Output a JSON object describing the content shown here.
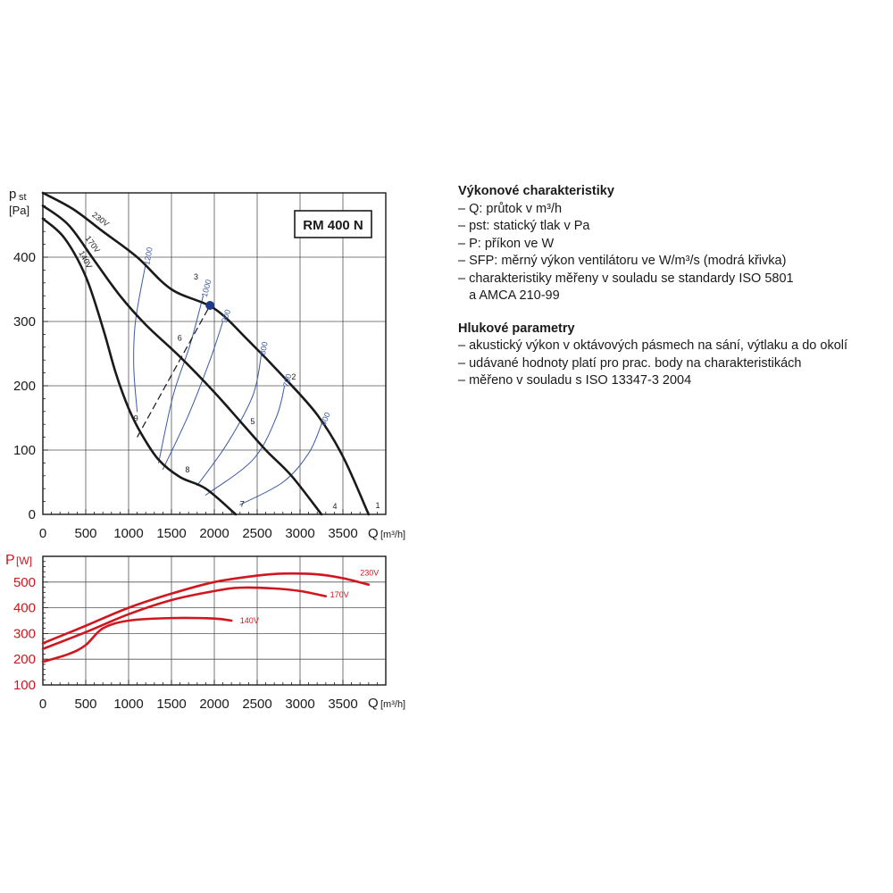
{
  "model_box": "RM 400 N",
  "colors": {
    "curve": "#1a1a1a",
    "sfp": "#3b5aa3",
    "power": "#d0161e",
    "op_point": "#1f3a8a"
  },
  "chart_data": [
    {
      "type": "line",
      "name": "pressure",
      "title": "RM 400 N",
      "ylabel_main": "p",
      "ylabel_sub": "st",
      "ylabel_unit": "[Pa]",
      "xlabel": "Q",
      "xunit": "[m³/h]",
      "xlim": [
        0,
        4000
      ],
      "ylim": [
        0,
        500
      ],
      "x_ticks": [
        0,
        500,
        1000,
        1500,
        2000,
        2500,
        3000,
        3500
      ],
      "y_ticks": [
        0,
        100,
        200,
        300,
        400
      ],
      "grid": true,
      "series": [
        {
          "name": "230V",
          "points": [
            [
              0,
              500
            ],
            [
              350,
              475
            ],
            [
              700,
              440
            ],
            [
              1100,
              400
            ],
            [
              1500,
              350
            ],
            [
              2000,
              320
            ],
            [
              2400,
              270
            ],
            [
              2800,
              215
            ],
            [
              3200,
              155
            ],
            [
              3500,
              90
            ],
            [
              3800,
              0
            ]
          ]
        },
        {
          "name": "170V",
          "points": [
            [
              0,
              480
            ],
            [
              300,
              450
            ],
            [
              600,
              395
            ],
            [
              900,
              340
            ],
            [
              1200,
              295
            ],
            [
              1600,
              245
            ],
            [
              2000,
              190
            ],
            [
              2300,
              145
            ],
            [
              2600,
              100
            ],
            [
              2900,
              60
            ],
            [
              3250,
              0
            ]
          ]
        },
        {
          "name": "140V",
          "points": [
            [
              0,
              460
            ],
            [
              250,
              430
            ],
            [
              500,
              370
            ],
            [
              700,
              290
            ],
            [
              850,
              220
            ],
            [
              1000,
              165
            ],
            [
              1150,
              125
            ],
            [
              1350,
              85
            ],
            [
              1600,
              58
            ],
            [
              1900,
              40
            ],
            [
              2250,
              0
            ]
          ]
        },
        {
          "name": "SFP 1200",
          "sfp": true,
          "points": [
            [
              1100,
              160
            ],
            [
              1060,
              230
            ],
            [
              1080,
              300
            ],
            [
              1200,
              390
            ]
          ]
        },
        {
          "name": "SFP 1000",
          "sfp": true,
          "points": [
            [
              1350,
              80
            ],
            [
              1520,
              185
            ],
            [
              1720,
              265
            ],
            [
              1870,
              340
            ]
          ]
        },
        {
          "name": "SFP 900",
          "sfp": true,
          "points": [
            [
              1400,
              70
            ],
            [
              1700,
              155
            ],
            [
              1950,
              240
            ],
            [
              2100,
              300
            ]
          ]
        },
        {
          "name": "SFP 800",
          "sfp": true,
          "points": [
            [
              1800,
              45
            ],
            [
              2150,
              110
            ],
            [
              2450,
              185
            ],
            [
              2550,
              250
            ]
          ]
        },
        {
          "name": "SFP 700",
          "sfp": true,
          "points": [
            [
              1900,
              30
            ],
            [
              2450,
              85
            ],
            [
              2720,
              150
            ],
            [
              2820,
              200
            ]
          ]
        },
        {
          "name": "SFP 600",
          "sfp": true,
          "points": [
            [
              2300,
              15
            ],
            [
              2800,
              50
            ],
            [
              3100,
              95
            ],
            [
              3250,
              140
            ]
          ]
        }
      ],
      "dashed_line": [
        [
          1100,
          120
        ],
        [
          1950,
          325
        ]
      ],
      "operating_point": [
        1950,
        325
      ],
      "point_labels": [
        {
          "text": "1",
          "x": 3880,
          "y": 10
        },
        {
          "text": "2",
          "x": 2900,
          "y": 210
        },
        {
          "text": "3",
          "x": 1760,
          "y": 365
        },
        {
          "text": "4",
          "x": 3380,
          "y": 8
        },
        {
          "text": "5",
          "x": 2420,
          "y": 140
        },
        {
          "text": "6",
          "x": 1570,
          "y": 270
        },
        {
          "text": "7",
          "x": 2300,
          "y": 12
        },
        {
          "text": "8",
          "x": 1660,
          "y": 65
        },
        {
          "text": "9",
          "x": 1060,
          "y": 145
        }
      ]
    },
    {
      "type": "line",
      "name": "power",
      "ylabel_main": "P",
      "ylabel_unit": "[W]",
      "xlabel": "Q",
      "xunit": "[m³/h]",
      "xlim": [
        0,
        4000
      ],
      "ylim": [
        100,
        600
      ],
      "x_ticks": [
        0,
        500,
        1000,
        1500,
        2000,
        2500,
        3000,
        3500
      ],
      "y_ticks": [
        100,
        200,
        300,
        400,
        500
      ],
      "grid": true,
      "series": [
        {
          "name": "230V",
          "points": [
            [
              0,
              262
            ],
            [
              500,
              330
            ],
            [
              1000,
              400
            ],
            [
              1500,
              455
            ],
            [
              2000,
              500
            ],
            [
              2500,
              525
            ],
            [
              2800,
              533
            ],
            [
              3200,
              530
            ],
            [
              3500,
              515
            ],
            [
              3800,
              490
            ]
          ]
        },
        {
          "name": "170V",
          "points": [
            [
              0,
              240
            ],
            [
              500,
              305
            ],
            [
              1000,
              375
            ],
            [
              1500,
              430
            ],
            [
              2000,
              465
            ],
            [
              2300,
              478
            ],
            [
              2700,
              475
            ],
            [
              3000,
              465
            ],
            [
              3300,
              445
            ]
          ]
        },
        {
          "name": "140V",
          "points": [
            [
              0,
              190
            ],
            [
              300,
              220
            ],
            [
              500,
              255
            ],
            [
              700,
              320
            ],
            [
              1000,
              350
            ],
            [
              1500,
              360
            ],
            [
              2000,
              358
            ],
            [
              2200,
              350
            ]
          ]
        }
      ],
      "labels": [
        {
          "text": "230V",
          "x": 3700,
          "y": 525
        },
        {
          "text": "170V",
          "x": 3350,
          "y": 440
        },
        {
          "text": "140V",
          "x": 2300,
          "y": 340
        }
      ]
    }
  ],
  "info": {
    "section1_title": "Výkonové charakteristiky",
    "section1_lines": [
      "– Q: průtok v m³/h",
      "– pst: statický tlak v Pa",
      "– P: příkon ve W",
      "– SFP: měrný výkon ventilátoru ve W/m³/s (modrá křivka)",
      "– charakteristiky měřeny v souladu se standardy ISO 5801",
      "   a AMCA 210-99"
    ],
    "section2_title": "Hlukové parametry",
    "section2_lines": [
      "– akustický výkon v oktávových pásmech na sání, výtlaku a do okolí",
      "– udávané hodnoty platí pro prac. body na charakteristikách",
      "– měřeno v souladu s ISO 13347-3 2004"
    ]
  }
}
